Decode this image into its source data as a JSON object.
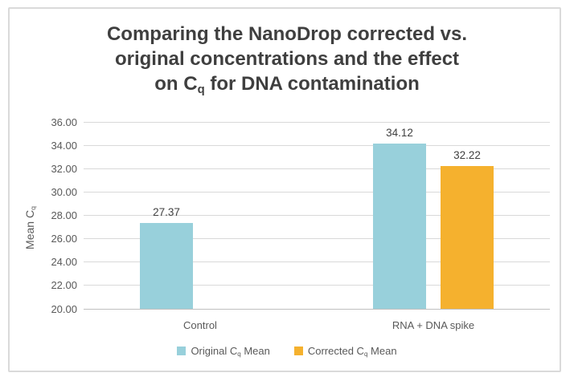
{
  "chart_data": {
    "type": "bar",
    "title": "Comparing the NanoDrop corrected vs. original concentrations and the effect on C_q for DNA contamination",
    "title_lines": [
      "Comparing the NanoDrop corrected vs.",
      "original concentrations and the effect",
      "on C_q for DNA contamination"
    ],
    "categories": [
      "Control",
      "RNA + DNA spike"
    ],
    "series": [
      {
        "name": "Original C_q Mean",
        "color": "#98d0db",
        "values": [
          27.37,
          34.12
        ]
      },
      {
        "name": "Corrected C_q Mean",
        "color": "#f5b12e",
        "values": [
          null,
          32.22
        ]
      }
    ],
    "xlabel": "",
    "ylabel": "Mean C_q",
    "ylim": [
      20,
      36
    ],
    "ytick_step": 2,
    "ytick_format": "2dp",
    "grid": true,
    "legend_position": "bottom",
    "value_label_format": "2dp",
    "colors": {
      "background": "#ffffff",
      "border": "#dadada",
      "gridline": "#d9d9d9",
      "axis_line": "#bfbfbf",
      "tick_text": "#595959",
      "title_text": "#3f3f3f",
      "value_label_text": "#404040"
    }
  }
}
